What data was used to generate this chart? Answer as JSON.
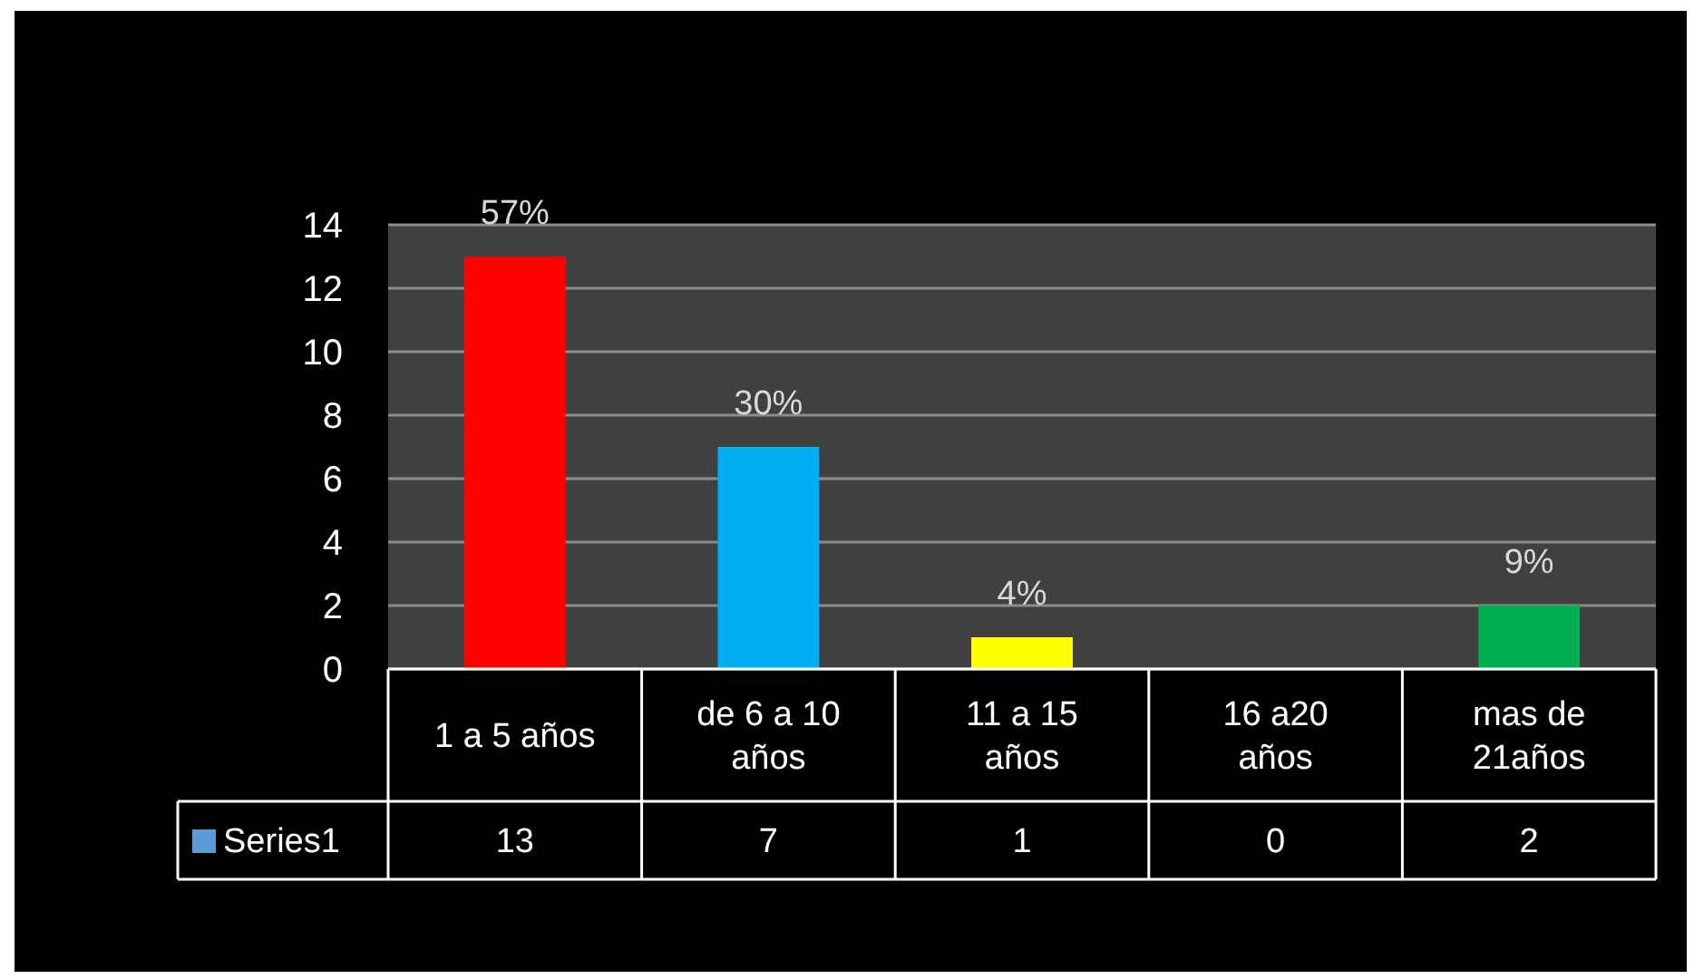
{
  "chart_data": {
    "type": "bar",
    "categories": [
      "1 a 5 años",
      "de 6 a 10 años",
      "11 a 15 años",
      "16 a20 años",
      "mas de 21años"
    ],
    "series": [
      {
        "name": "Series1",
        "color": "#5b9bd5",
        "colors": [
          "#ff0000",
          "#00b0f0",
          "#ffff00",
          "#ffc000",
          "#00b050"
        ],
        "values": [
          13,
          7,
          1,
          0,
          2
        ]
      }
    ],
    "ylim": [
      0,
      14
    ],
    "yticks": [
      0,
      2,
      4,
      6,
      8,
      10,
      12,
      14
    ],
    "grid": "y",
    "data_labels": true,
    "legend": "bottom",
    "annotations": [
      {
        "text": "57%",
        "x": "1 a 5 años",
        "y": 13
      },
      {
        "text": "30%",
        "x": "de 6 a 10 años",
        "y": 7
      },
      {
        "text": "4%",
        "x": "11 a 15 años",
        "y": 1
      },
      {
        "text": "9%",
        "x": "mas de 21años",
        "y": 2
      }
    ]
  }
}
